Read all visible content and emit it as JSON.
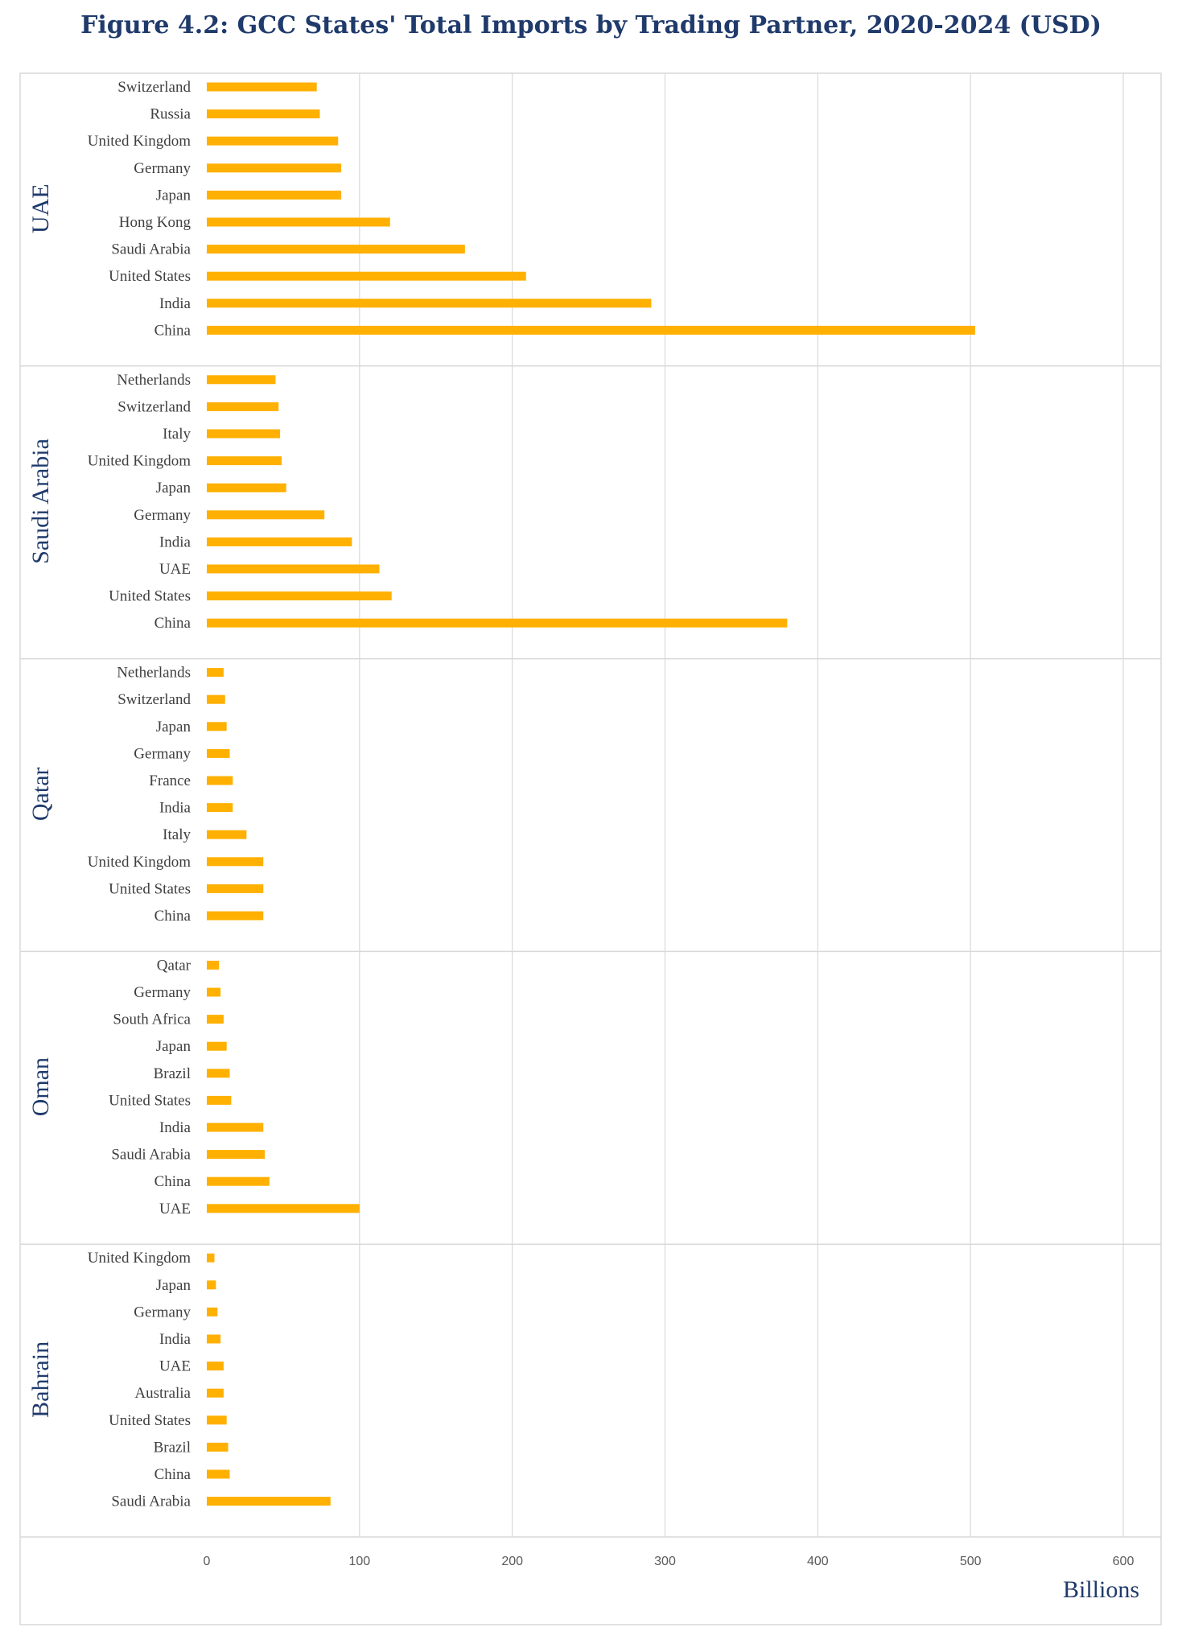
{
  "chart_data": {
    "type": "bar",
    "orientation": "horizontal",
    "title": "Figure 4.2: GCC States' Total Imports by Trading Partner, 2020-2024 (USD)",
    "xlabel": "Billions",
    "xlim": [
      0,
      600
    ],
    "xticks": [
      0,
      100,
      200,
      300,
      400,
      500,
      600
    ],
    "grid": true,
    "bar_color": "#ffb000",
    "panels": [
      {
        "name": "UAE",
        "categories": [
          "Switzerland",
          "Russia",
          "United Kingdom",
          "Germany",
          "Japan",
          "Hong Kong",
          "Saudi Arabia",
          "United States",
          "India",
          "China"
        ],
        "values": [
          72,
          74,
          86,
          88,
          88,
          120,
          169,
          209,
          291,
          503
        ]
      },
      {
        "name": "Saudi Arabia",
        "categories": [
          "Netherlands",
          "Switzerland",
          "Italy",
          "United Kingdom",
          "Japan",
          "Germany",
          "India",
          "UAE",
          "United States",
          "China"
        ],
        "values": [
          45,
          47,
          48,
          49,
          52,
          77,
          95,
          113,
          121,
          380
        ]
      },
      {
        "name": "Qatar",
        "categories": [
          "Netherlands",
          "Switzerland",
          "Japan",
          "Germany",
          "France",
          "India",
          "Italy",
          "United Kingdom",
          "United States",
          "China"
        ],
        "values": [
          11,
          12,
          13,
          15,
          17,
          17,
          26,
          37,
          37,
          37
        ]
      },
      {
        "name": "Oman",
        "categories": [
          "Qatar",
          "Germany",
          "South Africa",
          "Japan",
          "Brazil",
          "United States",
          "India",
          "Saudi Arabia",
          "China",
          "UAE"
        ],
        "values": [
          8,
          9,
          11,
          13,
          15,
          16,
          37,
          38,
          41,
          100
        ]
      },
      {
        "name": "Bahrain",
        "categories": [
          "United Kingdom",
          "Japan",
          "Germany",
          "India",
          "UAE",
          "Australia",
          "United States",
          "Brazil",
          "China",
          "Saudi Arabia"
        ],
        "values": [
          5,
          6,
          7,
          9,
          11,
          11,
          13,
          14,
          15,
          81
        ]
      }
    ]
  }
}
